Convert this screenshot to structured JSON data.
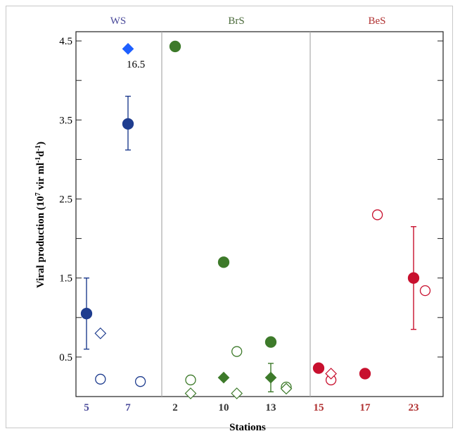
{
  "chart_data": {
    "type": "scatter",
    "ylabel_main": "Viral production (10",
    "ylabel_sup1": "7",
    "ylabel_mid": " vir ml",
    "ylabel_sup2": "-1",
    "ylabel_d": "d",
    "ylabel_sup3": "-1",
    "ylabel_end": ")",
    "xlabel": "Stations",
    "ylim": [
      0,
      4.5
    ],
    "yticks": [
      "0.5",
      "1.5",
      "2.5",
      "3.5",
      "4.5"
    ],
    "regions": [
      {
        "label": "WS",
        "color": "#4a4a9a"
      },
      {
        "label": "BrS",
        "color": "#4a6a3a"
      },
      {
        "label": "BeS",
        "color": "#b03030"
      }
    ],
    "stations": [
      {
        "label": "5",
        "color": "#4a4a9a"
      },
      {
        "label": "7",
        "color": "#4a4a9a"
      },
      {
        "label": "2",
        "color": "#333333"
      },
      {
        "label": "10",
        "color": "#333333"
      },
      {
        "label": "13",
        "color": "#333333"
      },
      {
        "label": "15",
        "color": "#b03030"
      },
      {
        "label": "17",
        "color": "#b03030"
      },
      {
        "label": "23",
        "color": "#b03030"
      }
    ],
    "annotation": "16.5",
    "series": [
      {
        "station": "5",
        "type": "filled-circle",
        "color": "#1f3d8f",
        "y": 1.05,
        "err": [
          0.6,
          1.5
        ]
      },
      {
        "station": "5",
        "type": "open-diamond",
        "color": "#1f3d8f",
        "y": 0.8,
        "offset": 0.9
      },
      {
        "station": "5",
        "type": "open-circle",
        "color": "#1f3d8f",
        "y": 0.22,
        "offset": 0.9
      },
      {
        "station": "7",
        "type": "filled-diamond",
        "color": "#1e5fff",
        "y": 4.4,
        "offset": 0
      },
      {
        "station": "7",
        "type": "filled-circle",
        "color": "#1f3d8f",
        "y": 3.45,
        "err": [
          3.12,
          3.8
        ]
      },
      {
        "station": "7",
        "type": "open-circle",
        "color": "#1f3d8f",
        "y": 0.19,
        "offset": 0.8
      },
      {
        "station": "2",
        "type": "filled-circle",
        "color": "#3d7a2a",
        "y": 4.43,
        "offset": 0
      },
      {
        "station": "2",
        "type": "open-circle",
        "color": "#3d7a2a",
        "y": 0.21,
        "offset": 1.0
      },
      {
        "station": "2",
        "type": "open-diamond",
        "color": "#3d7a2a",
        "y": 0.04,
        "offset": 1.0
      },
      {
        "station": "10",
        "type": "filled-circle",
        "color": "#3d7a2a",
        "y": 1.7,
        "offset": 0
      },
      {
        "station": "10",
        "type": "filled-diamond",
        "color": "#3d7a2a",
        "y": 0.24,
        "offset": 0
      },
      {
        "station": "10",
        "type": "open-circle",
        "color": "#3d7a2a",
        "y": 0.57,
        "offset": 0.85
      },
      {
        "station": "10",
        "type": "open-diamond",
        "color": "#3d7a2a",
        "y": 0.04,
        "offset": 0.85
      },
      {
        "station": "13",
        "type": "filled-circle",
        "color": "#3d7a2a",
        "y": 0.69,
        "offset": 0
      },
      {
        "station": "13",
        "type": "filled-diamond",
        "color": "#3d7a2a",
        "y": 0.24,
        "err": [
          0.06,
          0.42
        ]
      },
      {
        "station": "13",
        "type": "open-circle",
        "color": "#3d7a2a",
        "y": 0.12,
        "offset": 1.0
      },
      {
        "station": "13",
        "type": "open-diamond",
        "color": "#3d7a2a",
        "y": 0.1,
        "offset": 1.0
      },
      {
        "station": "15",
        "type": "filled-circle",
        "color": "#c8102e",
        "y": 0.36,
        "offset": 0
      },
      {
        "station": "15",
        "type": "open-circle",
        "color": "#c8102e",
        "y": 0.21,
        "offset": 0.8
      },
      {
        "station": "15",
        "type": "open-diamond",
        "color": "#c8102e",
        "y": 0.29,
        "offset": 0.8
      },
      {
        "station": "17",
        "type": "filled-circle",
        "color": "#c8102e",
        "y": 0.29,
        "offset": 0
      },
      {
        "station": "17",
        "type": "open-circle",
        "color": "#c8102e",
        "y": 2.3,
        "offset": 0.8
      },
      {
        "station": "23",
        "type": "filled-circle",
        "color": "#c8102e",
        "y": 1.5,
        "err": [
          0.85,
          2.15
        ]
      },
      {
        "station": "23",
        "type": "open-circle",
        "color": "#c8102e",
        "y": 1.34,
        "offset": 0.75
      }
    ]
  }
}
